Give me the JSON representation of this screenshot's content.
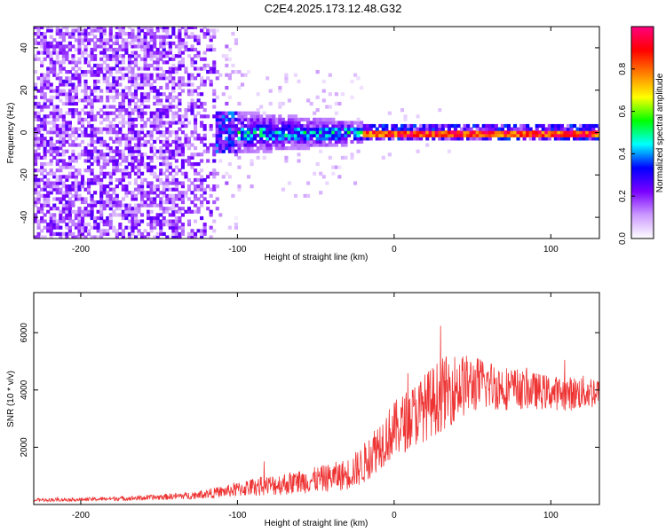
{
  "figure": {
    "title": "C2E4.2025.173.12.48.G32"
  },
  "chart_data": [
    {
      "type": "heatmap",
      "title": "C2E4.2025.173.12.48.G32",
      "xlabel": "Height of straight line (km)",
      "ylabel": "Frequency (Hz)",
      "xlim": [
        -230,
        131
      ],
      "ylim": [
        -50,
        50
      ],
      "x_ticks": [
        -200,
        -100,
        0,
        100
      ],
      "y_ticks": [
        -40,
        -20,
        0,
        20,
        40
      ],
      "colorbar": {
        "label": "Normalized spectral amplitude",
        "range": [
          0,
          1
        ],
        "ticks": [
          0.0,
          0.2,
          0.4,
          0.6,
          0.8
        ],
        "colors": [
          "#ffffff",
          "#cc99ff",
          "#7a00ff",
          "#0000ff",
          "#00ffff",
          "#00ff00",
          "#ffff00",
          "#ff8000",
          "#ff0000",
          "#ff0080"
        ]
      },
      "description_regions": [
        {
          "x_range": [
            -230,
            -115
          ],
          "freq_spread": 50,
          "amplitude": [
            0.05,
            0.25
          ]
        },
        {
          "x_range": [
            -115,
            -20
          ],
          "freq_spread": 10,
          "amplitude": [
            0.15,
            0.45
          ]
        },
        {
          "x_range": [
            -20,
            131
          ],
          "freq_spread": 2,
          "amplitude": [
            0.7,
            1.0
          ]
        }
      ]
    },
    {
      "type": "line",
      "xlabel": "Height of straight line (km)",
      "ylabel": "SNR (10 * v/v)",
      "xlim": [
        -230,
        131
      ],
      "ylim": [
        0,
        7400
      ],
      "x_ticks": [
        -200,
        -100,
        0,
        100
      ],
      "y_ticks": [
        2000,
        4000,
        6000
      ],
      "line_color": "#ee3333",
      "envelope": {
        "x": [
          -230,
          -200,
          -160,
          -130,
          -110,
          -90,
          -70,
          -50,
          -40,
          -30,
          -20,
          -10,
          0,
          10,
          20,
          30,
          40,
          50,
          60,
          70,
          80,
          90,
          100,
          110,
          120,
          131
        ],
        "mean": [
          150,
          170,
          220,
          300,
          420,
          580,
          680,
          820,
          900,
          1000,
          1300,
          2000,
          2500,
          2900,
          3300,
          3700,
          4000,
          4100,
          4100,
          4000,
          3950,
          3900,
          3850,
          3800,
          3850,
          3900
        ],
        "noise": [
          60,
          60,
          90,
          130,
          200,
          320,
          400,
          450,
          500,
          550,
          700,
          900,
          1000,
          1100,
          1200,
          1300,
          1200,
          1000,
          900,
          800,
          700,
          650,
          600,
          600,
          600,
          600
        ]
      }
    }
  ]
}
